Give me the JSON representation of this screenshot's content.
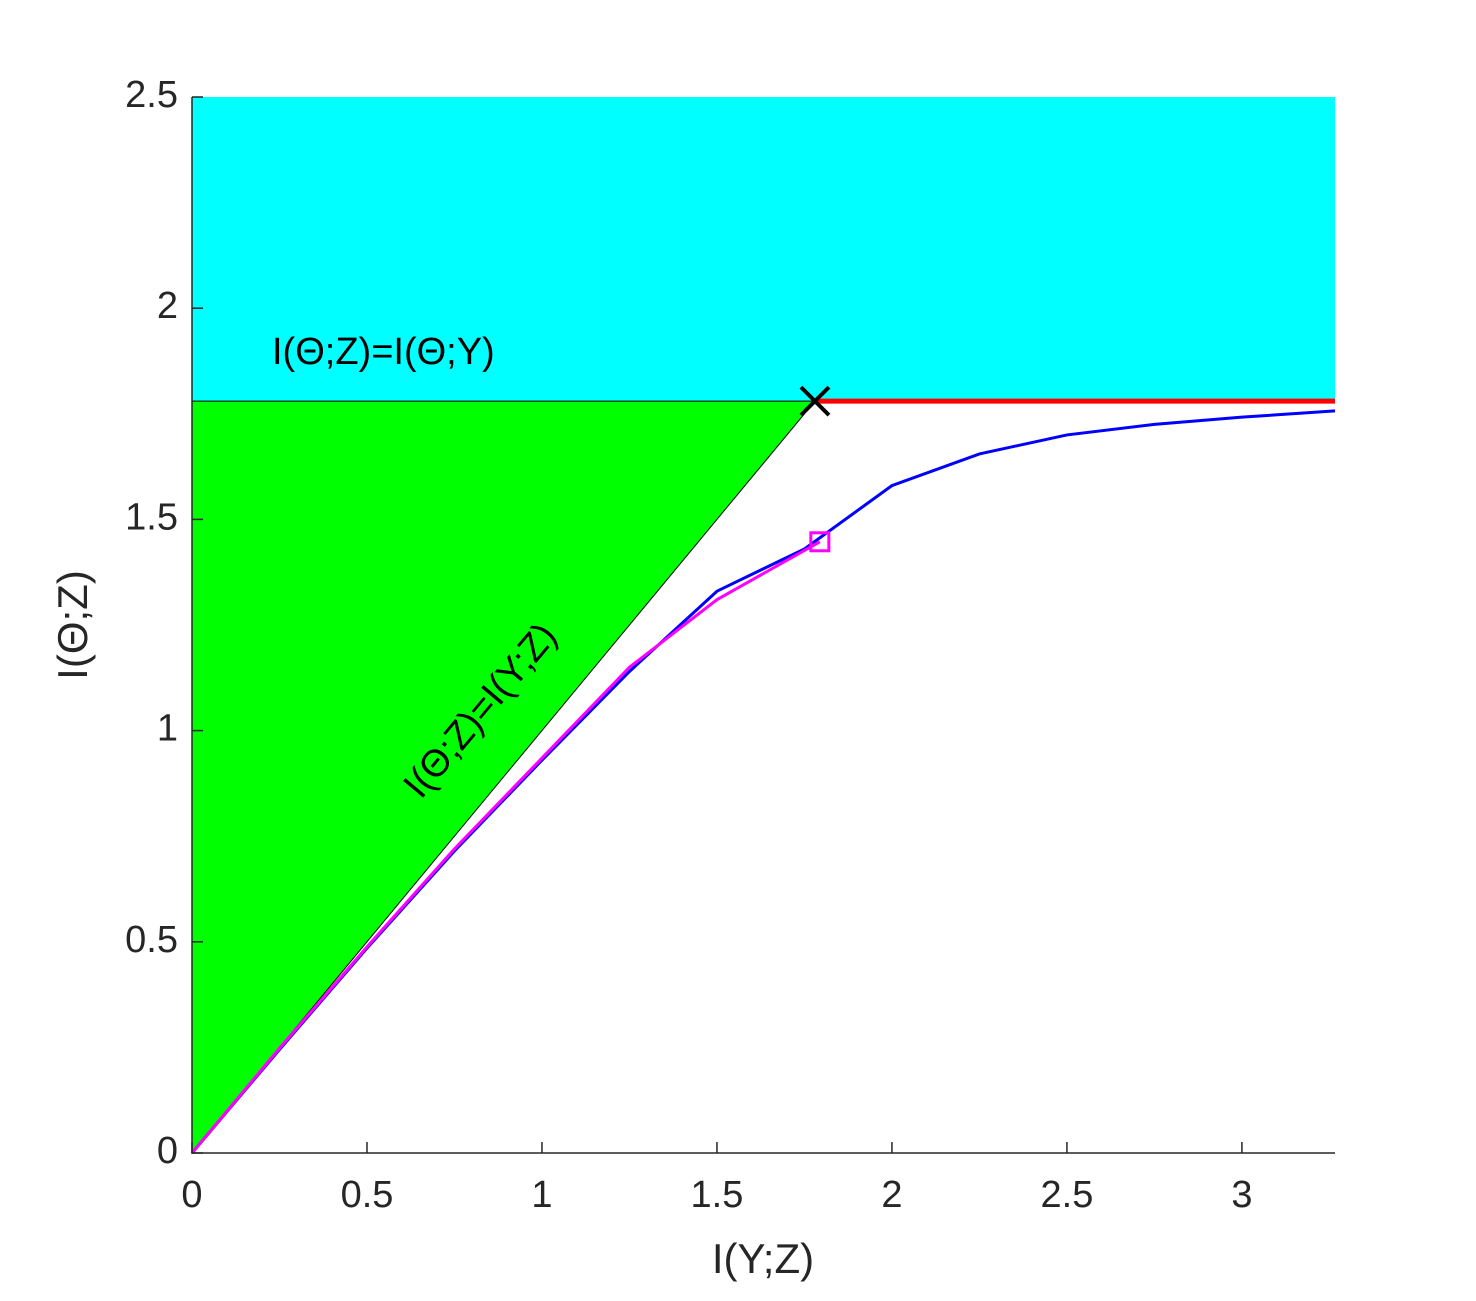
{
  "chart_data": {
    "type": "line",
    "x_label": "I(Y;Z)",
    "y_label": "I(Θ;Z)",
    "xlim": [
      0,
      3.266
    ],
    "ylim": [
      0,
      2.5
    ],
    "xticks": [
      0,
      0.5,
      1,
      1.5,
      2,
      2.5,
      3
    ],
    "yticks": [
      0,
      0.5,
      1,
      1.5,
      2,
      2.5
    ],
    "annotations": [
      "I(Θ;Z)=I(Θ;Y)",
      "I(Θ;Z)=I(Y;Z)"
    ],
    "series": [
      {
        "kind": "area",
        "color": "#00ffff",
        "x": [
          0,
          3.266
        ],
        "lower": [
          1.78,
          1.78
        ],
        "values": [
          2.5,
          2.5
        ]
      },
      {
        "kind": "area",
        "color": "#00ff00",
        "edge": "#000000",
        "x": [
          0,
          1.78
        ],
        "lower": [
          0,
          1.78
        ],
        "values": [
          1.78,
          1.78
        ]
      },
      {
        "kind": "line",
        "color": "#ff0000",
        "x": [
          1.78,
          3.266
        ],
        "values": [
          1.78,
          1.78
        ]
      },
      {
        "kind": "line",
        "color": "#0000ff",
        "x": [
          0,
          0.25,
          0.5,
          0.75,
          1,
          1.25,
          1.5,
          1.75,
          2,
          2.25,
          2.5,
          2.75,
          3,
          3.266
        ],
        "values": [
          0,
          0.245,
          0.485,
          0.715,
          0.93,
          1.14,
          1.33,
          1.43,
          1.58,
          1.655,
          1.7,
          1.725,
          1.742,
          1.757
        ]
      },
      {
        "kind": "line",
        "color": "#ff00ff",
        "x": [
          0,
          0.25,
          0.5,
          0.75,
          1,
          1.25,
          1.5,
          1.794
        ],
        "values": [
          0,
          0.248,
          0.488,
          0.72,
          0.935,
          1.15,
          1.31,
          1.447
        ]
      },
      {
        "kind": "marker",
        "marker": "x",
        "color": "#000000",
        "x": [
          1.78
        ],
        "values": [
          1.78
        ]
      },
      {
        "kind": "marker",
        "marker": "square",
        "color": "#ff00ff",
        "x": [
          1.794
        ],
        "values": [
          1.447
        ]
      }
    ]
  }
}
